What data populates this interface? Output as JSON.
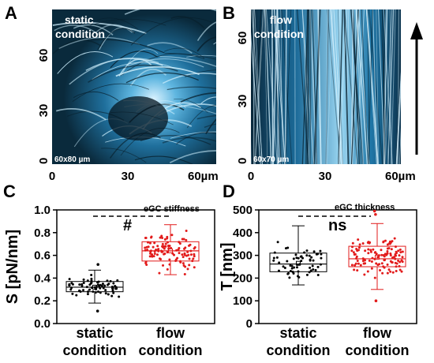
{
  "panels": {
    "A": {
      "letter": "A",
      "image_label_line1": "static",
      "image_label_line2": "condition",
      "scale_text": "60x80 µm",
      "x_ticks": [
        "0",
        "30",
        "60µm"
      ],
      "y_ticks": [
        "0",
        "30",
        "60"
      ],
      "colors": {
        "dark": "#0a2230",
        "mid": "#1f7fb0",
        "light": "#bfe6fa"
      }
    },
    "B": {
      "letter": "B",
      "image_label_line1": "flow",
      "image_label_line2": "condition",
      "scale_text": "60x70 µm",
      "x_ticks": [
        "0",
        "30",
        "60µm"
      ],
      "y_ticks": [
        "0",
        "30",
        "60"
      ],
      "flow_direction": "up"
    }
  },
  "chart_data": [
    {
      "panel": "C",
      "type": "box",
      "title": "",
      "ylabel": "S [pN/nm]",
      "xlabel": "",
      "ylim": [
        0,
        1.0
      ],
      "y_ticks": [
        "0.0",
        "0.2",
        "0.4",
        "0.6",
        "0.8",
        "1.0"
      ],
      "annotation": "eGC stiffness",
      "significance": "#",
      "categories": [
        "static condition",
        "flow condition"
      ],
      "category_lines": [
        [
          "static",
          "condition"
        ],
        [
          "flow",
          "condition"
        ]
      ],
      "series": [
        {
          "category": "static condition",
          "color": "#000000",
          "whisker_low": 0.18,
          "q1": 0.28,
          "median": 0.32,
          "mean": 0.32,
          "q3": 0.37,
          "whisker_high": 0.47,
          "outliers": [
            0.11,
            0.52
          ],
          "n": 70
        },
        {
          "category": "flow condition",
          "color": "#e21b1b",
          "whisker_low": 0.43,
          "q1": 0.55,
          "median": 0.64,
          "mean": 0.64,
          "q3": 0.72,
          "whisker_high": 0.87,
          "outliers": [],
          "n": 110
        }
      ]
    },
    {
      "panel": "D",
      "type": "box",
      "title": "",
      "ylabel": "T [nm]",
      "xlabel": "",
      "ylim": [
        0,
        500
      ],
      "y_ticks": [
        "0",
        "100",
        "200",
        "300",
        "400",
        "500"
      ],
      "annotation": "eGC thickness",
      "significance": "ns",
      "categories": [
        "static condition",
        "flow condition"
      ],
      "category_lines": [
        [
          "static",
          "condition"
        ],
        [
          "flow",
          "condition"
        ]
      ],
      "series": [
        {
          "category": "static condition",
          "color": "#000000",
          "whisker_low": 170,
          "q1": 228,
          "median": 262,
          "mean": 265,
          "q3": 310,
          "whisker_high": 430,
          "outliers": [],
          "n": 60
        },
        {
          "category": "flow condition",
          "color": "#e21b1b",
          "whisker_low": 150,
          "q1": 250,
          "median": 285,
          "mean": 292,
          "q3": 340,
          "whisker_high": 440,
          "outliers": [
            100,
            480,
            495
          ],
          "n": 120
        }
      ]
    }
  ]
}
